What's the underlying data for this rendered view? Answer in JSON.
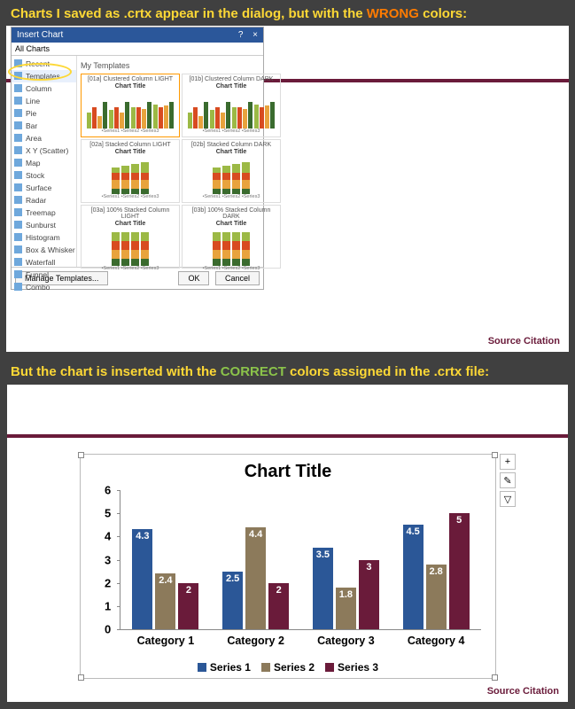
{
  "caption1": {
    "pre": "Charts I saved as .crtx appear in the dialog, but with the",
    "word": "WRONG",
    "post": "colors:"
  },
  "caption2": {
    "pre": "But the chart is inserted with the",
    "word": "CORRECT",
    "post": "colors assigned in the .crtx file:"
  },
  "slide": {
    "source_label": "Source Citation",
    "accent_color": "#6a1b3a"
  },
  "dialog": {
    "title": "Insert Chart",
    "help": "?",
    "close": "×",
    "tab": "All Charts",
    "templates_header": "My Templates",
    "side_items": [
      "Recent",
      "Templates",
      "Column",
      "Line",
      "Pie",
      "Bar",
      "Area",
      "X Y (Scatter)",
      "Map",
      "Stock",
      "Surface",
      "Radar",
      "Treemap",
      "Sunburst",
      "Histogram",
      "Box & Whisker",
      "Waterfall",
      "Funnel",
      "Combo"
    ],
    "templates": [
      {
        "name": "[01a] Clustered Column LIGHT"
      },
      {
        "name": "[01b] Clustered Column DARK"
      },
      {
        "name": "[02a] Stacked Column LIGHT"
      },
      {
        "name": "[02b] Stacked Column DARK"
      },
      {
        "name": "[03a] 100% Stacked Column LIGHT"
      },
      {
        "name": "[03b] 100% Stacked Column DARK"
      }
    ],
    "wrong_colors": [
      "#9cb945",
      "#d84b20",
      "#e8a33d",
      "#3a6b2e"
    ],
    "manage": "Manage Templates...",
    "ok": "OK",
    "cancel": "Cancel"
  },
  "chart": {
    "title": "Chart Title",
    "categories": [
      "Category 1",
      "Category 2",
      "Category 3",
      "Category 4"
    ],
    "series": [
      {
        "name": "Series 1",
        "color": "#2b5797",
        "values": [
          4.3,
          2.5,
          3.5,
          4.5
        ]
      },
      {
        "name": "Series 2",
        "color": "#8c7a5b",
        "values": [
          2.4,
          4.4,
          1.8,
          2.8
        ]
      },
      {
        "name": "Series 3",
        "color": "#6a1b3a",
        "values": [
          2,
          2,
          3,
          5
        ]
      }
    ],
    "ymax": 6,
    "yticks": [
      0,
      1,
      2,
      3,
      4,
      5,
      6
    ],
    "tools": [
      "+",
      "✎",
      "▽"
    ]
  }
}
